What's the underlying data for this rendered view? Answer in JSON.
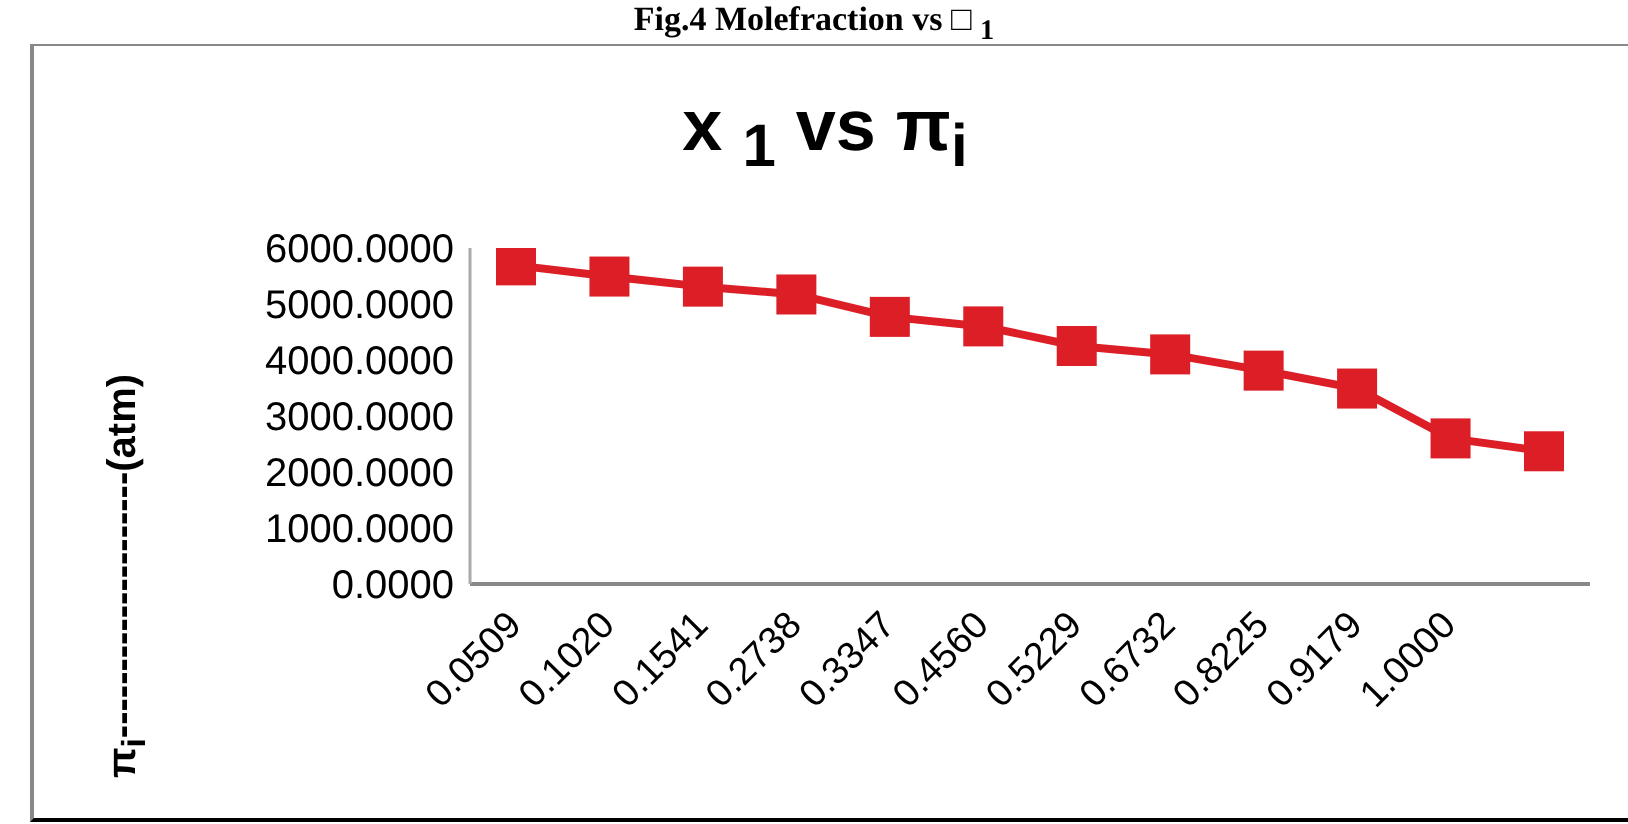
{
  "chart_data": {
    "type": "line",
    "title": "x $_{1}$ vs π$_{i}$",
    "ylabel": "π$_{i}$--------------------(atm)",
    "annotations": [
      "Fig.4 Molefraction vs □ $_{1}$"
    ],
    "categories": [
      "0.0509",
      "0.1020",
      "0.1541",
      "0.2738",
      "0.3347",
      "0.4560",
      "0.5229",
      "0.6732",
      "0.8225",
      "0.9179",
      "1.0000",
      null
    ],
    "series": [
      {
        "color": "#dc1e26",
        "values": [
          5690,
          5490,
          5310,
          5170,
          4770,
          4600,
          4250,
          4100,
          3810,
          3490,
          2600,
          2370
        ]
      }
    ],
    "ylim": [
      0,
      6000
    ],
    "yticks": [
      {
        "value": 0,
        "label": "0.0000"
      },
      {
        "value": 1000,
        "label": "1000.0000"
      },
      {
        "value": 2000,
        "label": "2000.0000"
      },
      {
        "value": 3000,
        "label": "3000.0000"
      },
      {
        "value": 4000,
        "label": "4000.0000"
      },
      {
        "value": 5000,
        "label": "5000.0000"
      },
      {
        "value": 6000,
        "label": "6000.0000"
      }
    ],
    "marker": "square",
    "line_style": "solid",
    "grid": false,
    "legend": false
  }
}
